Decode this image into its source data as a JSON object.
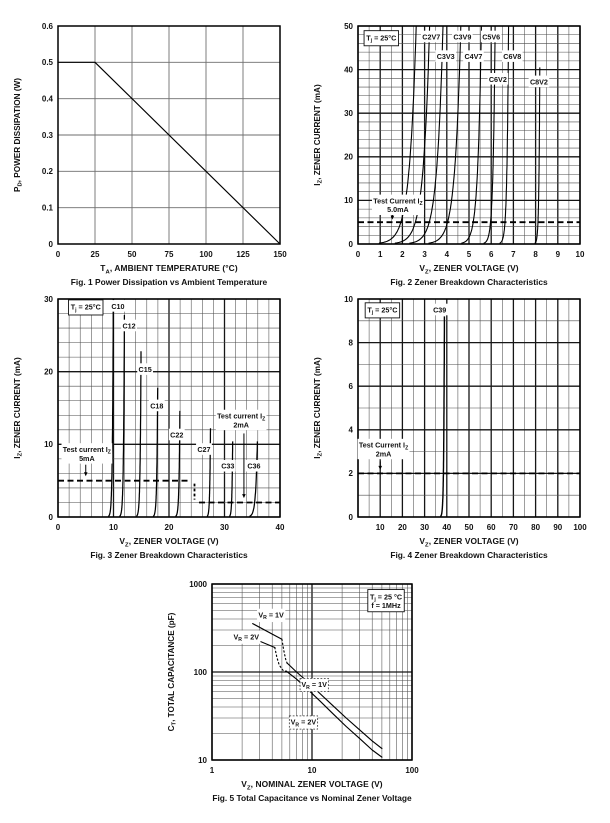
{
  "chart_data": [
    {
      "id": "fig1",
      "type": "line",
      "caption": "Fig. 1  Power Dissipation vs Ambient Temperature",
      "xlabel": "T~A~, AMBIENT TEMPERATURE (°C)",
      "ylabel": "P~D~, POWER DISSIPATION (W)",
      "xscale": "linear",
      "yscale": "linear",
      "xlim": [
        0,
        150
      ],
      "ylim": [
        0,
        0.6
      ],
      "xticks": {
        "values": [
          0,
          25,
          50,
          75,
          100,
          125,
          150
        ],
        "labels": [
          "0",
          "25",
          "50",
          "75",
          "100",
          "125",
          "150"
        ]
      },
      "yticks": {
        "values": [
          0,
          0.1,
          0.2,
          0.3,
          0.4,
          0.5,
          0.6
        ],
        "labels": [
          "0",
          "0.1",
          "0.2",
          "0.3",
          "0.4",
          "0.5",
          "0.6"
        ]
      },
      "grid": {
        "x_minor": 25,
        "x_major": 25,
        "y_minor": 0.1,
        "y_major": 0.1,
        "uniform": true
      },
      "series": [
        {
          "name": "power-derating-line",
          "style": "solid",
          "points": [
            [
              0,
              0.5
            ],
            [
              25,
              0.5
            ],
            [
              150,
              0
            ]
          ]
        }
      ],
      "zener_curves": [],
      "annotations": []
    },
    {
      "id": "fig2",
      "type": "line",
      "caption": "Fig. 2  Zener Breakdown Characteristics",
      "xlabel": "V~Z~, ZENER VOLTAGE (V)",
      "ylabel": "I~Z~, ZENER CURRENT (mA)",
      "xscale": "linear",
      "yscale": "linear",
      "xlim": [
        0,
        10
      ],
      "ylim": [
        0,
        50
      ],
      "xticks": {
        "values": [
          0,
          1,
          2,
          3,
          4,
          5,
          6,
          7,
          8,
          9,
          10
        ],
        "labels": [
          "0",
          "1",
          "2",
          "3",
          "4",
          "5",
          "6",
          "7",
          "8",
          "9",
          "10"
        ]
      },
      "yticks": {
        "values": [
          0,
          10,
          20,
          30,
          40,
          50
        ],
        "labels": [
          "0",
          "10",
          "20",
          "30",
          "40",
          "50"
        ]
      },
      "grid": {
        "x_minor": 0.5,
        "x_major": 1,
        "y_minor": 2,
        "y_major": 10
      },
      "curve_stroke": 1.1,
      "series": [],
      "zener_curves": [
        {
          "label": "C2V7",
          "vz": 2.7,
          "soft": 0.3,
          "y_top": 50,
          "label_at": [
            3.3,
            47.5
          ]
        },
        {
          "label": "C3V3",
          "vz": 3.3,
          "soft": 0.28,
          "y_top": 50,
          "label_at": [
            3.95,
            43
          ]
        },
        {
          "label": "C3V9",
          "vz": 3.9,
          "soft": 0.27,
          "y_top": 50,
          "label_at": [
            4.7,
            47.5
          ]
        },
        {
          "label": "C4V7",
          "vz": 4.7,
          "soft": 0.26,
          "y_top": 50,
          "label_at": [
            5.2,
            43
          ]
        },
        {
          "label": "C5V6",
          "vz": 5.6,
          "soft": 0.16,
          "y_top": 50,
          "label_at": [
            6.0,
            47.5
          ]
        },
        {
          "label": "C6V2",
          "vz": 6.2,
          "soft": 0.09,
          "y_top": 50,
          "label_at": [
            6.3,
            37.8
          ]
        },
        {
          "label": "C6V8",
          "vz": 6.8,
          "soft": 0.07,
          "y_top": 50,
          "label_at": [
            6.95,
            43
          ]
        },
        {
          "label": "C8V2",
          "vz": 8.2,
          "soft": 0.04,
          "y_top": 40.5,
          "label_at": [
            8.15,
            37.2
          ]
        }
      ],
      "test_current": {
        "label": "Test Current I~Z~",
        "value": "5.0mA",
        "level_mA": 5
      },
      "annotations": [
        {
          "kind": "boxed",
          "lines": [
            "T~j~ = 25°C"
          ],
          "at": [
            1.05,
            47.3
          ]
        },
        {
          "kind": "plain",
          "lines": [
            "Test Current I~Z~",
            "5.0mA"
          ],
          "at": [
            1.8,
            8.9
          ]
        },
        {
          "kind": "arrow",
          "from": [
            1.55,
            7.3
          ],
          "to": [
            1.55,
            5.6
          ]
        },
        {
          "kind": "dash",
          "points": [
            [
              0,
              5
            ],
            [
              10,
              5
            ]
          ]
        }
      ]
    },
    {
      "id": "fig3",
      "type": "line",
      "caption": "Fig. 3  Zener Breakdown Characteristics",
      "xlabel": "V~Z~, ZENER VOLTAGE (V)",
      "ylabel": "I~Z~, ZENER CURRENT (mA)",
      "xscale": "linear",
      "yscale": "linear",
      "xlim": [
        0,
        40
      ],
      "ylim": [
        0,
        30
      ],
      "xticks": {
        "values": [
          0,
          10,
          20,
          30,
          40
        ],
        "labels": [
          "0",
          "10",
          "20",
          "30",
          "40"
        ]
      },
      "yticks": {
        "values": [
          0,
          10,
          20,
          30
        ],
        "labels": [
          "0",
          "10",
          "20",
          "30"
        ]
      },
      "grid": {
        "x_minor": 2,
        "x_major": 10,
        "y_minor": 2,
        "y_major": 10
      },
      "curve_stroke": 1.25,
      "series": [],
      "zener_curves": [
        {
          "label": "C10",
          "vz": 10,
          "soft": 0.15,
          "y_top": 30,
          "label_at": [
            10.8,
            29
          ]
        },
        {
          "label": "C12",
          "vz": 12,
          "soft": 0.15,
          "y_top": 27.8,
          "label_at": [
            12.8,
            26.3
          ]
        },
        {
          "label": "C15",
          "vz": 15,
          "soft": 0.15,
          "y_top": 22.8,
          "label_at": [
            15.7,
            20.3
          ]
        },
        {
          "label": "C18",
          "vz": 18,
          "soft": 0.15,
          "y_top": 17.8,
          "label_at": [
            17.8,
            15.3
          ]
        },
        {
          "label": "C22",
          "vz": 22,
          "soft": 0.15,
          "y_top": 14.6,
          "label_at": [
            21.4,
            11.3
          ]
        },
        {
          "label": "C27",
          "vz": 27.5,
          "soft": 0.12,
          "y_top": 12.2,
          "label_at": [
            26.3,
            9.3
          ]
        },
        {
          "label": "C33",
          "vz": 31.5,
          "soft": 0.12,
          "y_top": 10.4,
          "label_at": [
            30.6,
            7
          ]
        },
        {
          "label": "C36",
          "vz": 36,
          "soft": 0.3,
          "y_top": 10.4,
          "label_at": [
            35.3,
            7
          ]
        }
      ],
      "test_current": {
        "label": "Test current I~Z~",
        "values": [
          "5mA",
          "2mA"
        ],
        "levels_mA": [
          5,
          2
        ]
      },
      "annotations": [
        {
          "kind": "boxed",
          "lines": [
            "T~j~ = 25°C"
          ],
          "at": [
            5,
            28.9
          ]
        },
        {
          "kind": "plain",
          "lines": [
            "Test current I~Z~",
            "5mA"
          ],
          "at": [
            5.2,
            8.7
          ]
        },
        {
          "kind": "arrow",
          "from": [
            5,
            7.2
          ],
          "to": [
            5,
            5.6
          ]
        },
        {
          "kind": "plain",
          "lines": [
            "Test current I~Z~",
            "2mA"
          ],
          "at": [
            33,
            13.3
          ]
        },
        {
          "kind": "arrow",
          "from": [
            33.5,
            11.5
          ],
          "to": [
            33.5,
            2.6
          ]
        },
        {
          "kind": "dash",
          "points": [
            [
              0,
              5
            ],
            [
              23.8,
              5
            ]
          ]
        },
        {
          "kind": "dash",
          "points": [
            [
              24.6,
              4.6
            ],
            [
              24.6,
              2.4
            ]
          ],
          "dash": "2.8 2.2"
        },
        {
          "kind": "dash",
          "points": [
            [
              25.4,
              2
            ],
            [
              40,
              2
            ]
          ]
        }
      ]
    },
    {
      "id": "fig4",
      "type": "line",
      "caption": "Fig. 4  Zener Breakdown Characteristics",
      "xlabel": "V~Z~, ZENER VOLTAGE (V)",
      "ylabel": "I~Z~, ZENER CURRENT (mA)",
      "xscale": "linear",
      "yscale": "linear",
      "xlim": [
        0,
        100
      ],
      "ylim": [
        0,
        10
      ],
      "xticks": {
        "values": [
          10,
          20,
          30,
          40,
          50,
          60,
          70,
          80,
          90,
          100
        ],
        "labels": [
          "10",
          "20",
          "30",
          "40",
          "50",
          "60",
          "70",
          "80",
          "90",
          "100"
        ]
      },
      "yticks": {
        "values": [
          0,
          2,
          4,
          6,
          8,
          10
        ],
        "labels": [
          "0",
          "2",
          "4",
          "6",
          "8",
          "10"
        ]
      },
      "grid": {
        "x_minor": 5,
        "x_major": 10,
        "y_minor": 1,
        "y_major": 2
      },
      "curve_stroke": 1.4,
      "series": [],
      "zener_curves": [
        {
          "label": "C39",
          "vz": 39,
          "soft": 0.3,
          "y_top": 9.2,
          "label_at": [
            36.8,
            9.5
          ]
        }
      ],
      "test_current": {
        "label": "Test Current I~Z~",
        "value": "2mA",
        "level_mA": 2
      },
      "annotations": [
        {
          "kind": "boxed",
          "lines": [
            "T~j~ = 25°C"
          ],
          "at": [
            11,
            9.5
          ]
        },
        {
          "kind": "plain",
          "lines": [
            "Test Current I~Z~",
            "2mA"
          ],
          "at": [
            11.5,
            3.1
          ]
        },
        {
          "kind": "arrow",
          "from": [
            10,
            2.55
          ],
          "to": [
            10,
            2.16
          ]
        },
        {
          "kind": "dash",
          "points": [
            [
              0,
              2
            ],
            [
              100,
              2
            ]
          ]
        }
      ]
    },
    {
      "id": "fig5",
      "type": "line",
      "caption": "Fig. 5  Total Capacitance vs Nominal Zener Voltage",
      "xlabel": "V~Z~, NOMINAL ZENER VOLTAGE (V)",
      "ylabel": "C~T~, TOTAL CAPACITANCE (pF)",
      "xscale": "log",
      "yscale": "log",
      "xlim": [
        1,
        100
      ],
      "ylim": [
        10,
        1000
      ],
      "xticks": {
        "values": [
          1,
          10,
          100
        ],
        "labels": [
          "1",
          "10",
          "100"
        ]
      },
      "yticks": {
        "values": [
          10,
          100,
          1000
        ],
        "labels": [
          "10",
          "100",
          "1000"
        ]
      },
      "grid": {
        "log": true
      },
      "conditions": {
        "tj": "T~j~ = 25 °C",
        "f": "f = 1MHz"
      },
      "series": [
        {
          "name": "VR1V-low-segment",
          "style": "solid",
          "points": [
            [
              2.55,
              355
            ],
            [
              5.0,
              235
            ]
          ]
        },
        {
          "name": "VR1V-transition",
          "style": "dotted",
          "points": [
            [
              5.0,
              235
            ],
            [
              5.2,
              180
            ],
            [
              5.45,
              140
            ],
            [
              5.7,
              122
            ]
          ]
        },
        {
          "name": "VR1V-main-curve",
          "style": "solid",
          "points": [
            [
              5.7,
              125
            ],
            [
              7,
              100
            ],
            [
              9,
              78
            ],
            [
              12,
              57
            ],
            [
              16,
              42
            ],
            [
              22,
              30
            ],
            [
              30,
              22
            ],
            [
              40,
              16.5
            ],
            [
              50,
              13.5
            ]
          ]
        },
        {
          "name": "VR2V-low-segment",
          "style": "solid",
          "points": [
            [
              2.05,
              268
            ],
            [
              4.25,
              190
            ]
          ]
        },
        {
          "name": "VR2V-transition",
          "style": "dotted",
          "points": [
            [
              4.25,
              190
            ],
            [
              4.45,
              148
            ],
            [
              4.7,
              120
            ],
            [
              5.1,
              105
            ],
            [
              5.5,
              101
            ]
          ]
        },
        {
          "name": "VR2V-main-curve",
          "style": "solid",
          "points": [
            [
              5.5,
              103
            ],
            [
              7,
              83
            ],
            [
              9,
              64
            ],
            [
              12,
              47
            ],
            [
              16,
              34
            ],
            [
              22,
              24
            ],
            [
              30,
              17.5
            ],
            [
              40,
              13
            ],
            [
              50,
              10.8
            ]
          ]
        }
      ],
      "zener_curves": [],
      "annotations": [
        {
          "kind": "plain",
          "lines": [
            "V~R~ = 1V"
          ],
          "at": [
            3.9,
            445
          ]
        },
        {
          "kind": "plain",
          "lines": [
            "V~R~ = 2V"
          ],
          "at": [
            2.2,
            252
          ]
        },
        {
          "kind": "dashedbox",
          "lines": [
            "V~R~ = 1V"
          ],
          "at": [
            10.5,
            72
          ]
        },
        {
          "kind": "dashedbox",
          "lines": [
            "V~R~ = 2V"
          ],
          "at": [
            8.2,
            27
          ]
        },
        {
          "kind": "boxed",
          "lines": [
            "T~j~ = 25 °C",
            "f = 1MHz"
          ],
          "at": [
            55,
            640
          ]
        }
      ]
    }
  ],
  "colors": {
    "background": "#ffffff",
    "grid_minor": "#4d4d4d",
    "grid_major": "#161616",
    "curve": "#000000",
    "text": "#111111"
  }
}
